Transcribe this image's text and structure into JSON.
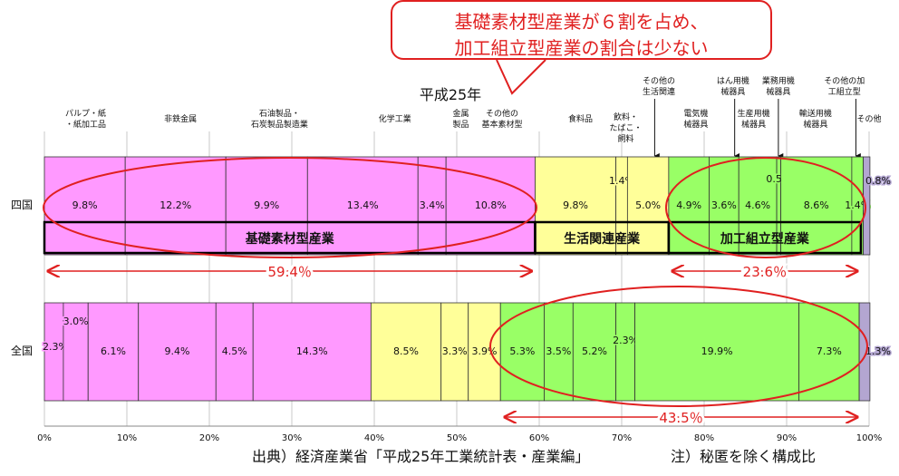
{
  "callout": {
    "line1": "基礎素材型産業が６割を占め、",
    "line2": "加工組立型産業の割合は少ない"
  },
  "source_text": "出典）経済産業省「平成25年工業統計表・産業編」",
  "note_text": "注）秘匿を除く構成比",
  "colors": {
    "basic_materials": "#ff99ff",
    "daily_life": "#ffff99",
    "assembly": "#99ff66",
    "other": "#b3a6d1",
    "accent_red": "#e02020"
  },
  "chart_data": {
    "type": "bar",
    "orientation": "horizontal-stacked",
    "title": "平成25年",
    "xlim": [
      0,
      100
    ],
    "x_ticks": [
      "0%",
      "10%",
      "20%",
      "30%",
      "40%",
      "50%",
      "60%",
      "70%",
      "80%",
      "90%",
      "100%"
    ],
    "grid": true,
    "rows": [
      {
        "label": "四国",
        "segments": [
          {
            "category": "パルプ・紙・紙加工品",
            "value": 9.8,
            "group": "basic_materials",
            "label": "9.8%"
          },
          {
            "category": "非鉄金属",
            "value": 12.2,
            "group": "basic_materials",
            "label": "12.2%"
          },
          {
            "category": "石油製品・石炭製品製造業",
            "value": 9.9,
            "group": "basic_materials",
            "label": "9.9%"
          },
          {
            "category": "化学工業",
            "value": 13.4,
            "group": "basic_materials",
            "label": "13.4%"
          },
          {
            "category": "金属製品",
            "value": 3.4,
            "group": "basic_materials",
            "label": "3.4%"
          },
          {
            "category": "その他の基本素材型",
            "value": 10.8,
            "group": "basic_materials",
            "label": "10.8%"
          },
          {
            "category": "食料品",
            "value": 9.8,
            "group": "daily_life",
            "label": "9.8%"
          },
          {
            "category": "飲料・たばこ・飼料",
            "value": 1.4,
            "group": "daily_life",
            "label": "1.4%"
          },
          {
            "category": "その他の生活関連",
            "value": 5.0,
            "group": "daily_life",
            "label": "5.0%"
          },
          {
            "category": "電気機械器具",
            "value": 4.9,
            "group": "assembly",
            "label": "4.9%"
          },
          {
            "category": "はん用機械器具",
            "value": 3.6,
            "group": "assembly",
            "label": "3.6%"
          },
          {
            "category": "生産用機械器具",
            "value": 4.6,
            "group": "assembly",
            "label": "4.6%"
          },
          {
            "category": "業務用機械器具",
            "value": 0.5,
            "group": "assembly",
            "label": "0.5%"
          },
          {
            "category": "輸送用機械器具",
            "value": 8.6,
            "group": "assembly",
            "label": "8.6%"
          },
          {
            "category": "その他の加工組立型",
            "value": 1.4,
            "group": "assembly",
            "label": "1.4%"
          },
          {
            "category": "その他",
            "value": 0.8,
            "group": "other",
            "label": "0.8%"
          }
        ],
        "group_labels": [
          {
            "text": "基礎素材型産業",
            "from": 0,
            "to": 59.5
          },
          {
            "text": "生活関連産業",
            "from": 59.5,
            "to": 75.7
          },
          {
            "text": "加工組立型産業",
            "from": 75.7,
            "to": 99.0
          }
        ],
        "span_annotations": [
          {
            "text": "59.4％",
            "from": 0,
            "to": 59.5
          },
          {
            "text": "23.6％",
            "from": 75.7,
            "to": 99.0
          }
        ]
      },
      {
        "label": "全国",
        "segments": [
          {
            "category": "パルプ・紙・紙加工品",
            "value": 2.3,
            "group": "basic_materials",
            "label": "2.3%"
          },
          {
            "category": "非鉄金属",
            "value": 3.0,
            "group": "basic_materials",
            "label": "3.0%"
          },
          {
            "category": "石油製品・石炭製品製造業",
            "value": 6.1,
            "group": "basic_materials",
            "label": "6.1%"
          },
          {
            "category": "化学工業",
            "value": 9.4,
            "group": "basic_materials",
            "label": "9.4%"
          },
          {
            "category": "金属製品",
            "value": 4.5,
            "group": "basic_materials",
            "label": "4.5%"
          },
          {
            "category": "その他の基本素材型",
            "value": 14.3,
            "group": "basic_materials",
            "label": "14.3%"
          },
          {
            "category": "食料品",
            "value": 8.5,
            "group": "daily_life",
            "label": "8.5%"
          },
          {
            "category": "飲料・たばこ・飼料",
            "value": 3.3,
            "group": "daily_life",
            "label": "3.3%"
          },
          {
            "category": "その他の生活関連",
            "value": 3.9,
            "group": "daily_life",
            "label": "3.9%"
          },
          {
            "category": "電気機械器具",
            "value": 5.3,
            "group": "assembly",
            "label": "5.3%"
          },
          {
            "category": "はん用機械器具",
            "value": 3.5,
            "group": "assembly",
            "label": "3.5%"
          },
          {
            "category": "生産用機械器具",
            "value": 5.2,
            "group": "assembly",
            "label": "5.2%"
          },
          {
            "category": "業務用機械器具",
            "value": 2.3,
            "group": "assembly",
            "label": "2.3%"
          },
          {
            "category": "輸送用機械器具",
            "value": 19.9,
            "group": "assembly",
            "label": "19.9%"
          },
          {
            "category": "その他の加工組立型",
            "value": 7.3,
            "group": "assembly",
            "label": "7.3%"
          },
          {
            "category": "その他",
            "value": 1.3,
            "group": "other",
            "label": "1.3%"
          }
        ],
        "span_annotations": [
          {
            "text": "43.5％",
            "from": 55.4,
            "to": 99.0
          }
        ]
      }
    ],
    "category_headers": [
      {
        "text": "パルプ・紙\n・紙加工品",
        "at": 5
      },
      {
        "text": "非鉄金属",
        "at": 16.5
      },
      {
        "text": "石油製品・\n石炭製品製造業",
        "at": 28.5
      },
      {
        "text": "化学工業",
        "at": 42.5
      },
      {
        "text": "金属\n製品",
        "at": 50.5
      },
      {
        "text": "その他の\n基本素材型",
        "at": 55.5
      },
      {
        "text": "食料品",
        "at": 65
      },
      {
        "text": "飲料・\nたばこ・\n飼料",
        "at": 70.5
      },
      {
        "text": "その他の\n生活関連",
        "at": 74.5,
        "arrow_to": 74.0
      },
      {
        "text": "電気機\n械器具",
        "at": 79
      },
      {
        "text": "はん用機\n械器具",
        "at": 83.5,
        "arrow_to": 83.7
      },
      {
        "text": "生産用機\n械器具",
        "at": 86
      },
      {
        "text": "業務用機\n械器具",
        "at": 89,
        "arrow_to": 89.0
      },
      {
        "text": "輸送用機\n械器具",
        "at": 93.5
      },
      {
        "text": "その他の加\n工組立型",
        "at": 97,
        "arrow_to": 98.4
      },
      {
        "text": "その他",
        "at": 100
      }
    ]
  }
}
